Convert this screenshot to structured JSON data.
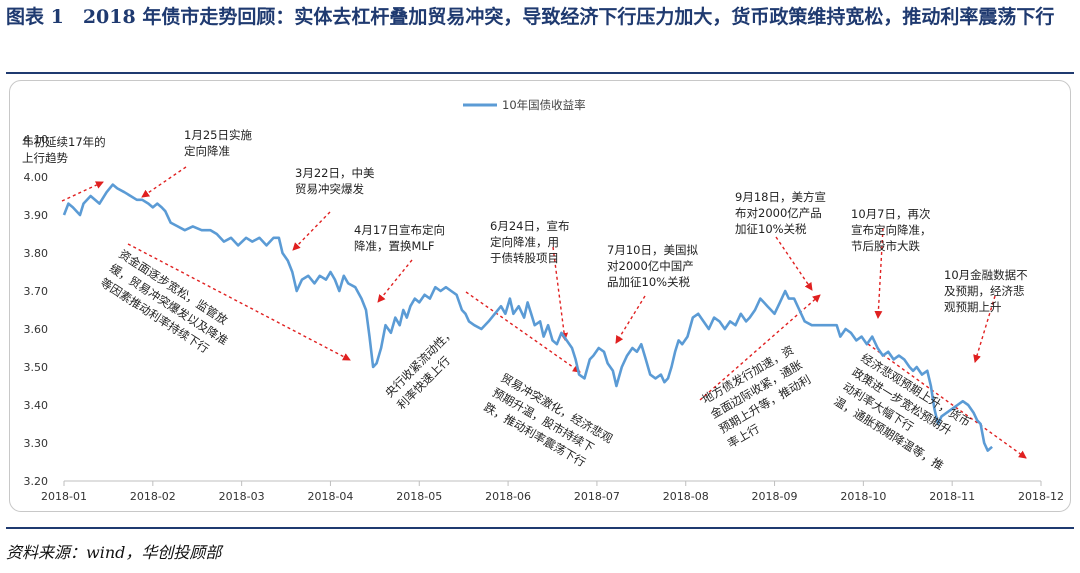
{
  "header": {
    "title": "图表 1　2018 年债市走势回顾：实体去杠杆叠加贸易冲突，导致经济下行压力加大，货币政策维持宽松，推动利率震荡下行"
  },
  "footer": {
    "source": "资料来源：wind，华创投顾部"
  },
  "colors": {
    "series": "#5b9bd5",
    "arrow": "#e02020",
    "title": "#1f3a70"
  },
  "chart_data": {
    "type": "line",
    "title": "",
    "xlabel": "",
    "ylabel": "",
    "ylim": [
      3.2,
      4.1
    ],
    "yticks": [
      "3.20",
      "3.30",
      "3.40",
      "3.50",
      "3.60",
      "3.70",
      "3.80",
      "3.90",
      "4.00",
      "4.10"
    ],
    "xticks": [
      "2018-01",
      "2018-02",
      "2018-03",
      "2018-04",
      "2018-05",
      "2018-06",
      "2018-07",
      "2018-08",
      "2018-09",
      "2018-10",
      "2018-11",
      "2018-12"
    ],
    "legend": {
      "position": "top-center"
    },
    "grid": false,
    "series": [
      {
        "name": "10年国债收益率",
        "values": [
          [
            0.0,
            3.9
          ],
          [
            0.05,
            3.93
          ],
          [
            0.1,
            3.92
          ],
          [
            0.18,
            3.9
          ],
          [
            0.22,
            3.93
          ],
          [
            0.3,
            3.95
          ],
          [
            0.4,
            3.93
          ],
          [
            0.48,
            3.96
          ],
          [
            0.55,
            3.98
          ],
          [
            0.6,
            3.97
          ],
          [
            0.68,
            3.96
          ],
          [
            0.75,
            3.95
          ],
          [
            0.82,
            3.94
          ],
          [
            0.88,
            3.94
          ],
          [
            0.95,
            3.93
          ],
          [
            1.0,
            3.92
          ],
          [
            1.05,
            3.93
          ],
          [
            1.1,
            3.92
          ],
          [
            1.14,
            3.91
          ],
          [
            1.2,
            3.88
          ],
          [
            1.28,
            3.87
          ],
          [
            1.36,
            3.86
          ],
          [
            1.45,
            3.87
          ],
          [
            1.55,
            3.86
          ],
          [
            1.65,
            3.86
          ],
          [
            1.72,
            3.85
          ],
          [
            1.8,
            3.83
          ],
          [
            1.88,
            3.84
          ],
          [
            1.96,
            3.82
          ],
          [
            2.05,
            3.84
          ],
          [
            2.12,
            3.83
          ],
          [
            2.2,
            3.84
          ],
          [
            2.28,
            3.82
          ],
          [
            2.36,
            3.84
          ],
          [
            2.42,
            3.84
          ],
          [
            2.46,
            3.8
          ],
          [
            2.52,
            3.78
          ],
          [
            2.57,
            3.75
          ],
          [
            2.62,
            3.7
          ],
          [
            2.68,
            3.73
          ],
          [
            2.75,
            3.74
          ],
          [
            2.82,
            3.72
          ],
          [
            2.88,
            3.74
          ],
          [
            2.95,
            3.73
          ],
          [
            3.0,
            3.75
          ],
          [
            3.05,
            3.73
          ],
          [
            3.1,
            3.7
          ],
          [
            3.15,
            3.74
          ],
          [
            3.2,
            3.72
          ],
          [
            3.28,
            3.71
          ],
          [
            3.35,
            3.68
          ],
          [
            3.4,
            3.65
          ],
          [
            3.44,
            3.58
          ],
          [
            3.48,
            3.5
          ],
          [
            3.52,
            3.51
          ],
          [
            3.57,
            3.55
          ],
          [
            3.62,
            3.61
          ],
          [
            3.68,
            3.59
          ],
          [
            3.73,
            3.63
          ],
          [
            3.78,
            3.61
          ],
          [
            3.82,
            3.65
          ],
          [
            3.86,
            3.63
          ],
          [
            3.9,
            3.66
          ],
          [
            3.95,
            3.68
          ],
          [
            4.0,
            3.67
          ],
          [
            4.06,
            3.69
          ],
          [
            4.12,
            3.68
          ],
          [
            4.18,
            3.71
          ],
          [
            4.24,
            3.7
          ],
          [
            4.3,
            3.71
          ],
          [
            4.36,
            3.7
          ],
          [
            4.42,
            3.69
          ],
          [
            4.48,
            3.65
          ],
          [
            4.52,
            3.64
          ],
          [
            4.56,
            3.62
          ],
          [
            4.62,
            3.61
          ],
          [
            4.7,
            3.6
          ],
          [
            4.78,
            3.62
          ],
          [
            4.85,
            3.64
          ],
          [
            4.92,
            3.66
          ],
          [
            4.97,
            3.64
          ],
          [
            5.02,
            3.68
          ],
          [
            5.06,
            3.64
          ],
          [
            5.12,
            3.66
          ],
          [
            5.18,
            3.63
          ],
          [
            5.22,
            3.67
          ],
          [
            5.26,
            3.64
          ],
          [
            5.3,
            3.61
          ],
          [
            5.36,
            3.62
          ],
          [
            5.4,
            3.58
          ],
          [
            5.45,
            3.61
          ],
          [
            5.5,
            3.57
          ],
          [
            5.55,
            3.56
          ],
          [
            5.6,
            3.59
          ],
          [
            5.66,
            3.57
          ],
          [
            5.72,
            3.55
          ],
          [
            5.76,
            3.52
          ],
          [
            5.8,
            3.48
          ],
          [
            5.86,
            3.47
          ],
          [
            5.92,
            3.52
          ],
          [
            5.96,
            3.53
          ],
          [
            6.02,
            3.55
          ],
          [
            6.08,
            3.54
          ],
          [
            6.12,
            3.51
          ],
          [
            6.18,
            3.49
          ],
          [
            6.22,
            3.45
          ],
          [
            6.28,
            3.5
          ],
          [
            6.34,
            3.53
          ],
          [
            6.4,
            3.55
          ],
          [
            6.45,
            3.54
          ],
          [
            6.5,
            3.56
          ],
          [
            6.55,
            3.52
          ],
          [
            6.6,
            3.48
          ],
          [
            6.66,
            3.47
          ],
          [
            6.72,
            3.48
          ],
          [
            6.76,
            3.46
          ],
          [
            6.8,
            3.47
          ],
          [
            6.84,
            3.5
          ],
          [
            6.88,
            3.54
          ],
          [
            6.92,
            3.57
          ],
          [
            6.96,
            3.56
          ],
          [
            7.02,
            3.58
          ],
          [
            7.08,
            3.63
          ],
          [
            7.14,
            3.64
          ],
          [
            7.2,
            3.62
          ],
          [
            7.26,
            3.6
          ],
          [
            7.32,
            3.63
          ],
          [
            7.38,
            3.62
          ],
          [
            7.44,
            3.6
          ],
          [
            7.5,
            3.62
          ],
          [
            7.56,
            3.61
          ],
          [
            7.62,
            3.64
          ],
          [
            7.68,
            3.62
          ],
          [
            7.72,
            3.63
          ],
          [
            7.78,
            3.65
          ],
          [
            7.84,
            3.68
          ],
          [
            7.88,
            3.67
          ],
          [
            7.92,
            3.66
          ],
          [
            7.96,
            3.65
          ],
          [
            8.0,
            3.64
          ],
          [
            8.06,
            3.67
          ],
          [
            8.12,
            3.7
          ],
          [
            8.16,
            3.68
          ],
          [
            8.22,
            3.68
          ],
          [
            8.28,
            3.65
          ],
          [
            8.34,
            3.62
          ],
          [
            8.42,
            3.61
          ],
          [
            8.52,
            3.61
          ],
          [
            8.62,
            3.61
          ],
          [
            8.7,
            3.61
          ],
          [
            8.74,
            3.58
          ],
          [
            8.8,
            3.6
          ],
          [
            8.86,
            3.59
          ],
          [
            8.92,
            3.57
          ],
          [
            8.98,
            3.58
          ],
          [
            9.04,
            3.56
          ],
          [
            9.1,
            3.58
          ],
          [
            9.16,
            3.55
          ],
          [
            9.22,
            3.53
          ],
          [
            9.28,
            3.54
          ],
          [
            9.34,
            3.52
          ],
          [
            9.4,
            3.53
          ],
          [
            9.46,
            3.52
          ],
          [
            9.52,
            3.5
          ],
          [
            9.56,
            3.49
          ],
          [
            9.6,
            3.5
          ],
          [
            9.66,
            3.48
          ],
          [
            9.72,
            3.49
          ],
          [
            9.76,
            3.45
          ],
          [
            9.8,
            3.39
          ],
          [
            9.84,
            3.35
          ],
          [
            9.88,
            3.37
          ],
          [
            9.94,
            3.38
          ],
          [
            10.0,
            3.39
          ],
          [
            10.06,
            3.4
          ],
          [
            10.12,
            3.41
          ],
          [
            10.18,
            3.4
          ],
          [
            10.24,
            3.38
          ],
          [
            10.28,
            3.36
          ],
          [
            10.32,
            3.35
          ],
          [
            10.36,
            3.3
          ],
          [
            10.4,
            3.28
          ],
          [
            10.45,
            3.29
          ]
        ]
      }
    ],
    "annotations": [
      {
        "lines": [
          "年初延续17年的",
          "上行趋势"
        ]
      },
      {
        "lines": [
          "1月25日实施",
          "定向降准"
        ]
      },
      {
        "lines": [
          "3月22日，中美",
          "贸易冲突爆发"
        ]
      },
      {
        "lines": [
          "4月17日宣布定向",
          "降准，置换MLF"
        ]
      },
      {
        "lines": [
          "6月24日，宣布",
          "定向降准，用",
          "于债转股项目"
        ]
      },
      {
        "lines": [
          "7月10日，美国拟",
          "对2000亿中国产",
          "品加征10%关税"
        ]
      },
      {
        "lines": [
          "9月18日，美方宣",
          "布对2000亿产品",
          "加征10%关税"
        ]
      },
      {
        "lines": [
          "10月7日，再次",
          "宣布定向降准，",
          "节后股市大跌"
        ]
      },
      {
        "lines": [
          "10月金融数据不",
          "及预期，经济悲",
          "观预期上升"
        ]
      },
      {
        "lines": [
          "资金面逐步宽松，监管放",
          "缓，贸易冲突爆发以及降准",
          "等因素推动利率持续下行"
        ]
      },
      {
        "lines": [
          "央行收紧流动性，",
          "利率快速上行"
        ]
      },
      {
        "lines": [
          "贸易冲突激化，经济悲观",
          "预期升温，股市持续下",
          "跌，推动利率震荡下行"
        ]
      },
      {
        "lines": [
          "地方债发行加速，资",
          "金面边际收紧，通胀",
          "预期上升等，推动利",
          "率上行"
        ]
      },
      {
        "lines": [
          "经济悲观预期上升，货币",
          "政策进一步宽松预期升",
          "动利率大幅下行",
          "温，通胀预期降温等，推"
        ]
      }
    ]
  }
}
